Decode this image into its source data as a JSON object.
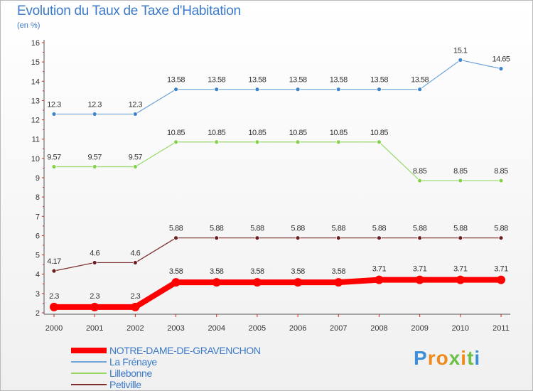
{
  "header": {
    "title": "Evolution du Taux de Taxe d'Habitation",
    "subtitle": "(en %)"
  },
  "chart_data": {
    "type": "line",
    "title": "Evolution du Taux de Taxe d'Habitation",
    "ylabel": "(en %)",
    "xlabel": "",
    "categories": [
      "2000",
      "2001",
      "2002",
      "2003",
      "2004",
      "2005",
      "2006",
      "2007",
      "2008",
      "2009",
      "2010",
      "2011"
    ],
    "yticks": [
      "2",
      "3",
      "4",
      "5",
      "6",
      "7",
      "8",
      "9",
      "10",
      "11",
      "12",
      "13",
      "14",
      "15",
      "16"
    ],
    "ylim": [
      2,
      16
    ],
    "grid": false,
    "series": [
      {
        "name": "NOTRE-DAME-DE-GRAVENCHON",
        "color": "#ff0000",
        "marker": "#ff0000",
        "thick": true,
        "values": [
          2.3,
          2.3,
          2.3,
          3.58,
          3.58,
          3.58,
          3.58,
          3.58,
          3.71,
          3.71,
          3.71,
          3.71
        ],
        "labels": [
          "2.3",
          "2.3",
          "2.3",
          "3.58",
          "3.58",
          "3.58",
          "3.58",
          "3.58",
          "3.71",
          "3.71",
          "3.71",
          "3.71"
        ]
      },
      {
        "name": "La Frénaye",
        "color": "#6fa4d8",
        "marker": "#3d84c8",
        "thick": false,
        "values": [
          12.3,
          12.3,
          12.3,
          13.58,
          13.58,
          13.58,
          13.58,
          13.58,
          13.58,
          13.58,
          15.1,
          14.65
        ],
        "labels": [
          "12.3",
          "12.3",
          "12.3",
          "13.58",
          "13.58",
          "13.58",
          "13.58",
          "13.58",
          "13.58",
          "13.58",
          "15.1",
          "14.65"
        ]
      },
      {
        "name": "Lillebonne",
        "color": "#97d867",
        "marker": "#86d24f",
        "thick": false,
        "values": [
          9.57,
          9.57,
          9.57,
          10.85,
          10.85,
          10.85,
          10.85,
          10.85,
          10.85,
          8.85,
          8.85,
          8.85
        ],
        "labels": [
          "9.57",
          "9.57",
          "9.57",
          "10.85",
          "10.85",
          "10.85",
          "10.85",
          "10.85",
          "10.85",
          "8.85",
          "8.85",
          "8.85"
        ]
      },
      {
        "name": "Petiville",
        "color": "#7c2d2d",
        "marker": "#6b1e1e",
        "thick": false,
        "values": [
          4.17,
          4.6,
          4.6,
          5.88,
          5.88,
          5.88,
          5.88,
          5.88,
          5.88,
          5.88,
          5.88,
          5.88
        ],
        "labels": [
          "4.17",
          "4.6",
          "4.6",
          "5.88",
          "5.88",
          "5.88",
          "5.88",
          "5.88",
          "5.88",
          "5.88",
          "5.88",
          "5.88"
        ]
      }
    ]
  },
  "legend": {
    "items": [
      {
        "label": "NOTRE-DAME-DE-GRAVENCHON",
        "color": "#ff0000"
      },
      {
        "label": "La Frénaye",
        "color": "#6fa4d8"
      },
      {
        "label": "Lillebonne",
        "color": "#97d867"
      },
      {
        "label": "Petiville",
        "color": "#7c2d2d"
      }
    ]
  },
  "logo": {
    "letters": [
      "P",
      "r",
      "o",
      "x",
      "i",
      "t",
      "i"
    ],
    "colors": [
      "#3a8fd6",
      "#f08a1c",
      "#f08a1c",
      "#6cc04a",
      "#f08a1c",
      "#6cc04a",
      "#3a8fd6"
    ]
  }
}
